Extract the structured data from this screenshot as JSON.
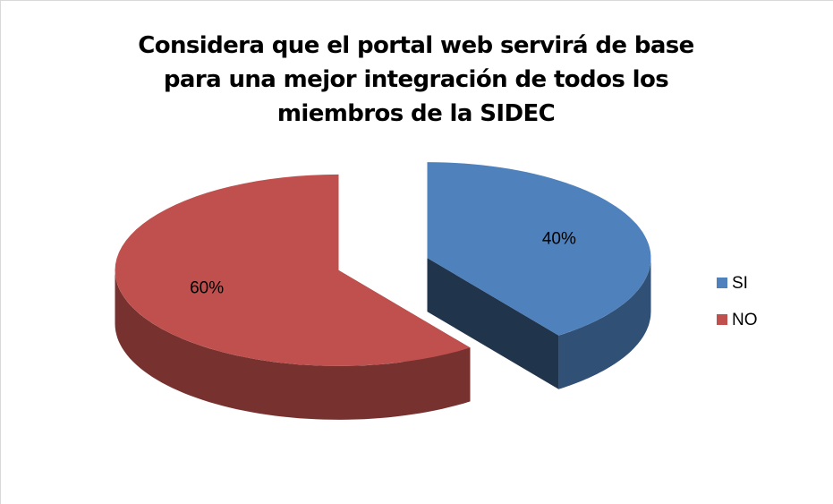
{
  "chart_data": {
    "type": "pie",
    "title": "Considera que el portal web servirá de base para una mejor integración de todos los miembros de la SIDEC",
    "categories": [
      "SI",
      "NO"
    ],
    "values": [
      40,
      60
    ],
    "value_labels": [
      "40%",
      "60%"
    ],
    "colors": [
      "#4f81bd",
      "#c0504d"
    ],
    "legend": "right"
  }
}
